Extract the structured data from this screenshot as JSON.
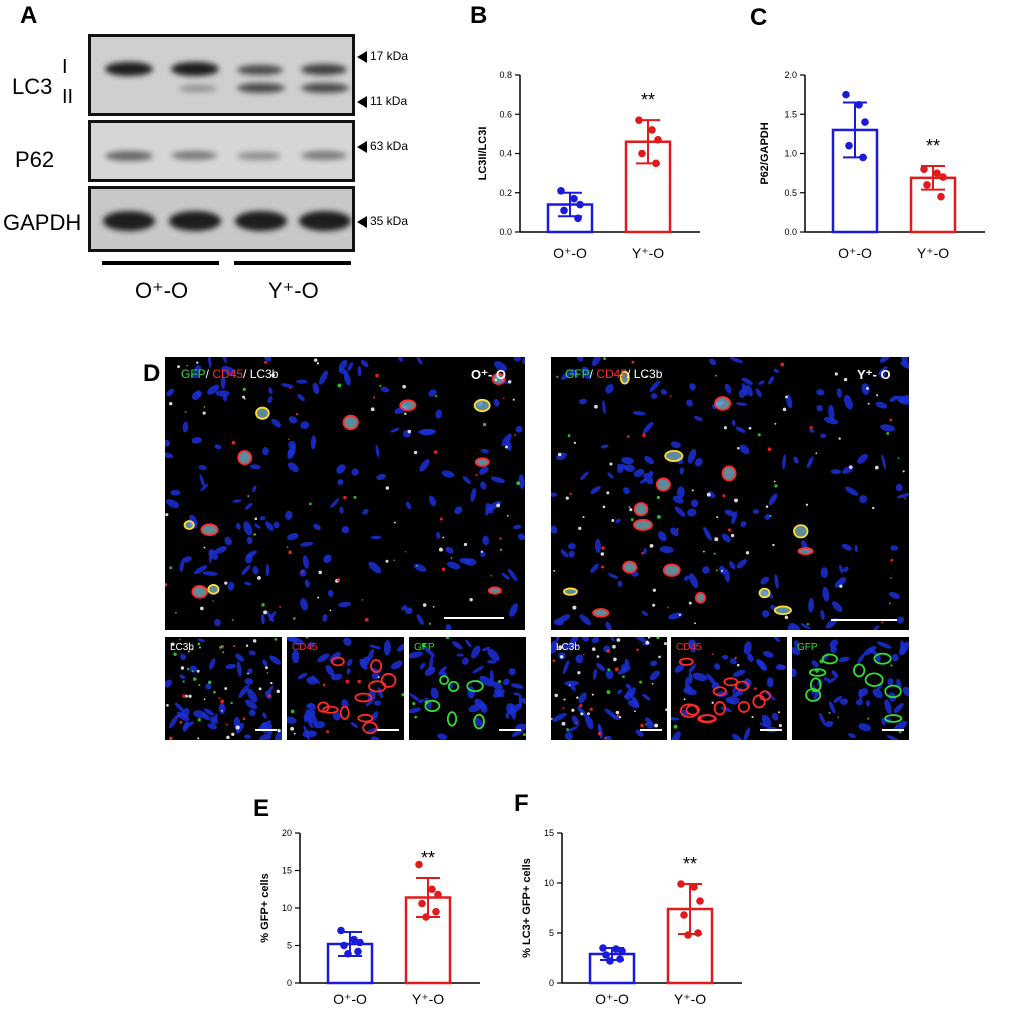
{
  "panels": {
    "A": "A",
    "B": "B",
    "C": "C",
    "D": "D",
    "E": "E",
    "F": "F"
  },
  "western_blot": {
    "lc3_label": "LC3",
    "lc3_form_i": "I",
    "lc3_form_ii": "II",
    "p62_label": "P62",
    "gapdh_label": "GAPDH",
    "markers": [
      "17 kDa",
      "11 kDa",
      "63 kDa",
      "35 kDa"
    ],
    "group_labels": [
      "O⁺-O",
      "Y⁺-O"
    ]
  },
  "chart_data": [
    {
      "id": "B",
      "type": "bar",
      "categories": [
        "O⁺-O",
        "Y⁺-O"
      ],
      "values": [
        0.14,
        0.46
      ],
      "errors": [
        0.06,
        0.11
      ],
      "points": [
        [
          0.21,
          0.17,
          0.14,
          0.11,
          0.07
        ],
        [
          0.57,
          0.52,
          0.47,
          0.4,
          0.35
        ]
      ],
      "ylabel": "LC3II/LC3I",
      "ylim": [
        0,
        0.8
      ],
      "yticks": [
        "0.0",
        "0.2",
        "0.4",
        "0.6",
        "0.8"
      ],
      "annotation": "**",
      "colors": [
        "#1a1adb",
        "#e01b1b"
      ]
    },
    {
      "id": "C",
      "type": "bar",
      "categories": [
        "O⁺-O",
        "Y⁺-O"
      ],
      "values": [
        1.3,
        0.69
      ],
      "errors": [
        0.35,
        0.15
      ],
      "points": [
        [
          1.75,
          1.62,
          1.4,
          1.1,
          0.95
        ],
        [
          0.8,
          0.75,
          0.7,
          0.6,
          0.45
        ]
      ],
      "ylabel": "P62/GAPDH",
      "ylim": [
        0,
        2.0
      ],
      "yticks": [
        "0.0",
        "0.5",
        "1.0",
        "1.5",
        "2.0"
      ],
      "annotation": "**",
      "colors": [
        "#1a1adb",
        "#e01b1b"
      ]
    },
    {
      "id": "E",
      "type": "bar",
      "categories": [
        "O⁺-O",
        "Y⁺-O"
      ],
      "values": [
        5.2,
        11.4
      ],
      "errors": [
        1.6,
        2.6
      ],
      "points": [
        [
          7.0,
          5.8,
          5.4,
          5.0,
          4.2,
          3.9
        ],
        [
          15.8,
          12.5,
          11.8,
          10.6,
          9.5,
          8.8
        ]
      ],
      "ylabel": "% GFP+ cells",
      "ylim": [
        0,
        20
      ],
      "yticks": [
        "0",
        "5",
        "10",
        "15",
        "20"
      ],
      "annotation": "**",
      "colors": [
        "#1a1adb",
        "#e01b1b"
      ]
    },
    {
      "id": "F",
      "type": "bar",
      "categories": [
        "O⁺-O",
        "Y⁺-O"
      ],
      "values": [
        2.9,
        7.4
      ],
      "errors": [
        0.6,
        2.5
      ],
      "points": [
        [
          3.5,
          3.4,
          3.2,
          2.8,
          2.4,
          2.2
        ],
        [
          9.9,
          9.6,
          8.2,
          6.8,
          5.0,
          4.8
        ]
      ],
      "ylabel": "% LC3+ GFP+ cells",
      "ylim": [
        0,
        15
      ],
      "yticks": [
        "0",
        "5",
        "10",
        "15"
      ],
      "annotation": "**",
      "colors": [
        "#1a1adb",
        "#e01b1b"
      ]
    }
  ],
  "microscopy": {
    "left_title": "O⁺- O",
    "right_title": "Y⁺- O",
    "legend_gfp": "GFP",
    "legend_sep1": "/ ",
    "legend_cd45": "CD45",
    "legend_sep2": "/ ",
    "legend_lc3b": "LC3b",
    "sub_labels": [
      "LC3b",
      "CD45",
      "GFP"
    ],
    "colors": {
      "gfp": "#33dd33",
      "cd45": "#ff2a2a",
      "lc3b": "#ffffff",
      "nuclei": "#1b2fd6"
    }
  }
}
